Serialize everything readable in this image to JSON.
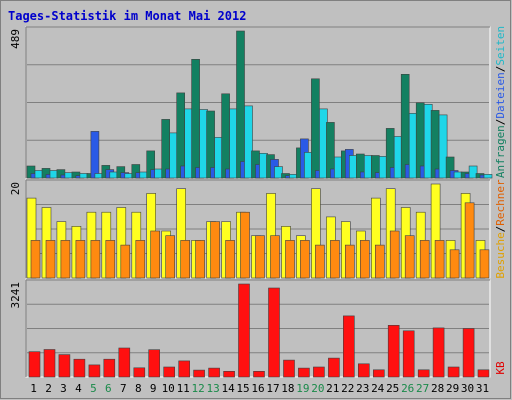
{
  "title": "Tages-Statistik im Monat Mai 2012",
  "colors": {
    "anfragen": "#138061",
    "dateien": "#2a5ae6",
    "seiten": "#1fd6e8",
    "besuche": "#ffff20",
    "rechner": "#ff8a10",
    "kb": "#ff1010",
    "grid": "#808080",
    "panel": "#c0c0c0"
  },
  "legend": {
    "top": [
      {
        "text": "Anfragen",
        "color": "#138061"
      },
      {
        "text": "/",
        "color": "#000000"
      },
      {
        "text": "Dateien",
        "color": "#2a5ae6"
      },
      {
        "text": "/",
        "color": "#000000"
      },
      {
        "text": "Seiten",
        "color": "#1fb8c8"
      }
    ],
    "middle": [
      {
        "text": "Besuche",
        "color": "#e0a000"
      },
      {
        "text": "/",
        "color": "#000000"
      },
      {
        "text": "Rechner",
        "color": "#e06000"
      }
    ],
    "bottom": [
      {
        "text": "KB",
        "color": "#e00000"
      }
    ]
  },
  "chart_data": {
    "type": "bar",
    "title": "Tages-Statistik im Monat Mai 2012",
    "categories": [
      "1",
      "2",
      "3",
      "4",
      "5",
      "6",
      "7",
      "8",
      "9",
      "10",
      "11",
      "12",
      "13",
      "14",
      "15",
      "16",
      "17",
      "18",
      "19",
      "20",
      "21",
      "22",
      "23",
      "24",
      "25",
      "26",
      "27",
      "28",
      "29",
      "30",
      "31"
    ],
    "weekend_days": [
      "5",
      "6",
      "12",
      "13",
      "19",
      "20",
      "26",
      "27"
    ],
    "panels": [
      {
        "id": "top",
        "ymax_label": "489",
        "ymax": 489,
        "series": [
          {
            "name": "Anfragen",
            "values": [
              40,
              32,
              28,
              20,
              15,
              42,
              38,
              45,
              90,
              195,
              283,
              395,
              223,
              280,
              489,
              90,
              78,
              15,
              100,
              330,
              185,
              90,
              80,
              75,
              165,
              345,
              250,
              225,
              70,
              20,
              15
            ]
          },
          {
            "name": "Dateien",
            "values": [
              15,
              12,
              10,
              8,
              155,
              28,
              18,
              18,
              28,
              30,
              40,
              35,
              35,
              30,
              55,
              45,
              62,
              8,
              130,
              25,
              30,
              95,
              20,
              18,
              35,
              45,
              40,
              30,
              25,
              15,
              10
            ]
          },
          {
            "name": "Seiten",
            "values": [
              25,
              25,
              18,
              15,
              15,
              20,
              15,
              20,
              30,
              150,
              230,
              228,
              135,
              230,
              240,
              82,
              38,
              12,
              85,
              230,
              70,
              75,
              75,
              72,
              138,
              215,
              245,
              210,
              20,
              40,
              12
            ]
          }
        ]
      },
      {
        "id": "middle",
        "ymax_label": "20",
        "ymax": 20,
        "series": [
          {
            "name": "Besuche",
            "values": [
              17,
              15,
              12,
              11,
              14,
              14,
              15,
              14,
              18,
              10,
              19,
              8,
              12,
              12,
              14,
              9,
              18,
              11,
              9,
              19,
              13,
              12,
              10,
              17,
              19,
              15,
              14,
              20,
              8,
              18,
              8
            ]
          },
          {
            "name": "Rechner",
            "values": [
              8,
              8,
              8,
              8,
              8,
              8,
              7,
              8,
              10,
              9,
              8,
              8,
              12,
              8,
              14,
              9,
              9,
              8,
              8,
              7,
              8,
              7,
              8,
              7,
              10,
              9,
              8,
              8,
              6,
              16,
              6
            ]
          }
        ]
      },
      {
        "id": "bottom",
        "ymax_label": "3241",
        "ymax": 3241,
        "series": [
          {
            "name": "KB",
            "values": [
              880,
              960,
              780,
              620,
              420,
              620,
              1010,
              320,
              950,
              350,
              560,
              240,
              310,
              200,
              3241,
              200,
              3100,
              590,
              310,
              350,
              660,
              2130,
              460,
              250,
              1800,
              1610,
              250,
              1710,
              350,
              1690,
              250
            ]
          }
        ]
      }
    ]
  }
}
